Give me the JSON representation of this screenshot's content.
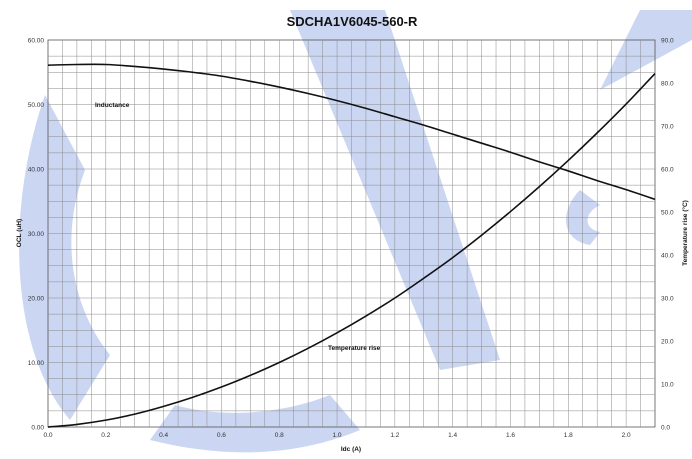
{
  "chart_data": {
    "type": "line",
    "title": "SDCHA1V6045-560-R",
    "xlabel": "Idc (A)",
    "ylabel_left": "OCL (uH)",
    "ylabel_right": "Temperature rise (°C)",
    "xlim": [
      0,
      2.1
    ],
    "ylim_left": [
      0,
      60
    ],
    "ylim_right": [
      0,
      90
    ],
    "x_ticks": [
      "0.0",
      "0.2",
      "0.4",
      "0.6",
      "0.8",
      "1.0",
      "1.2",
      "1.4",
      "1.6",
      "1.8",
      "2.0"
    ],
    "y_left_ticks": [
      "0.00",
      "10.00",
      "20.00",
      "30.00",
      "40.00",
      "50.00",
      "60.00"
    ],
    "y_right_ticks": [
      "0.0",
      "10.0",
      "20.0",
      "30.0",
      "40.0",
      "50.0",
      "60.0",
      "70.0",
      "80.0",
      "90.0"
    ],
    "grid": true,
    "series": [
      {
        "name": "Inductance",
        "axis": "left",
        "x": [
          0.0,
          0.1,
          0.2,
          0.3,
          0.4,
          0.5,
          0.6,
          0.7,
          0.8,
          0.9,
          1.0,
          1.1,
          1.2,
          1.3,
          1.4,
          1.5,
          1.6,
          1.7,
          1.8,
          1.9,
          2.0,
          2.1
        ],
        "y": [
          56.1,
          56.2,
          56.2,
          55.9,
          55.5,
          55.0,
          54.4,
          53.6,
          52.7,
          51.7,
          50.6,
          49.4,
          48.1,
          46.8,
          45.4,
          44.0,
          42.6,
          41.1,
          39.7,
          38.2,
          36.8,
          35.3
        ]
      },
      {
        "name": "Temperature rise",
        "axis": "right",
        "x": [
          0.0,
          0.1,
          0.2,
          0.3,
          0.4,
          0.5,
          0.6,
          0.7,
          0.8,
          0.9,
          1.0,
          1.1,
          1.2,
          1.3,
          1.4,
          1.5,
          1.6,
          1.7,
          1.8,
          1.9,
          2.0,
          2.1
        ],
        "y": [
          0.0,
          0.6,
          1.6,
          3.0,
          4.8,
          6.9,
          9.3,
          12.0,
          15.0,
          18.3,
          21.9,
          25.8,
          30.0,
          34.6,
          39.4,
          44.6,
          50.1,
          55.9,
          62.0,
          68.4,
          75.1,
          82.2
        ]
      }
    ],
    "annotations": [
      "Inductance",
      "Temperature rise"
    ]
  }
}
